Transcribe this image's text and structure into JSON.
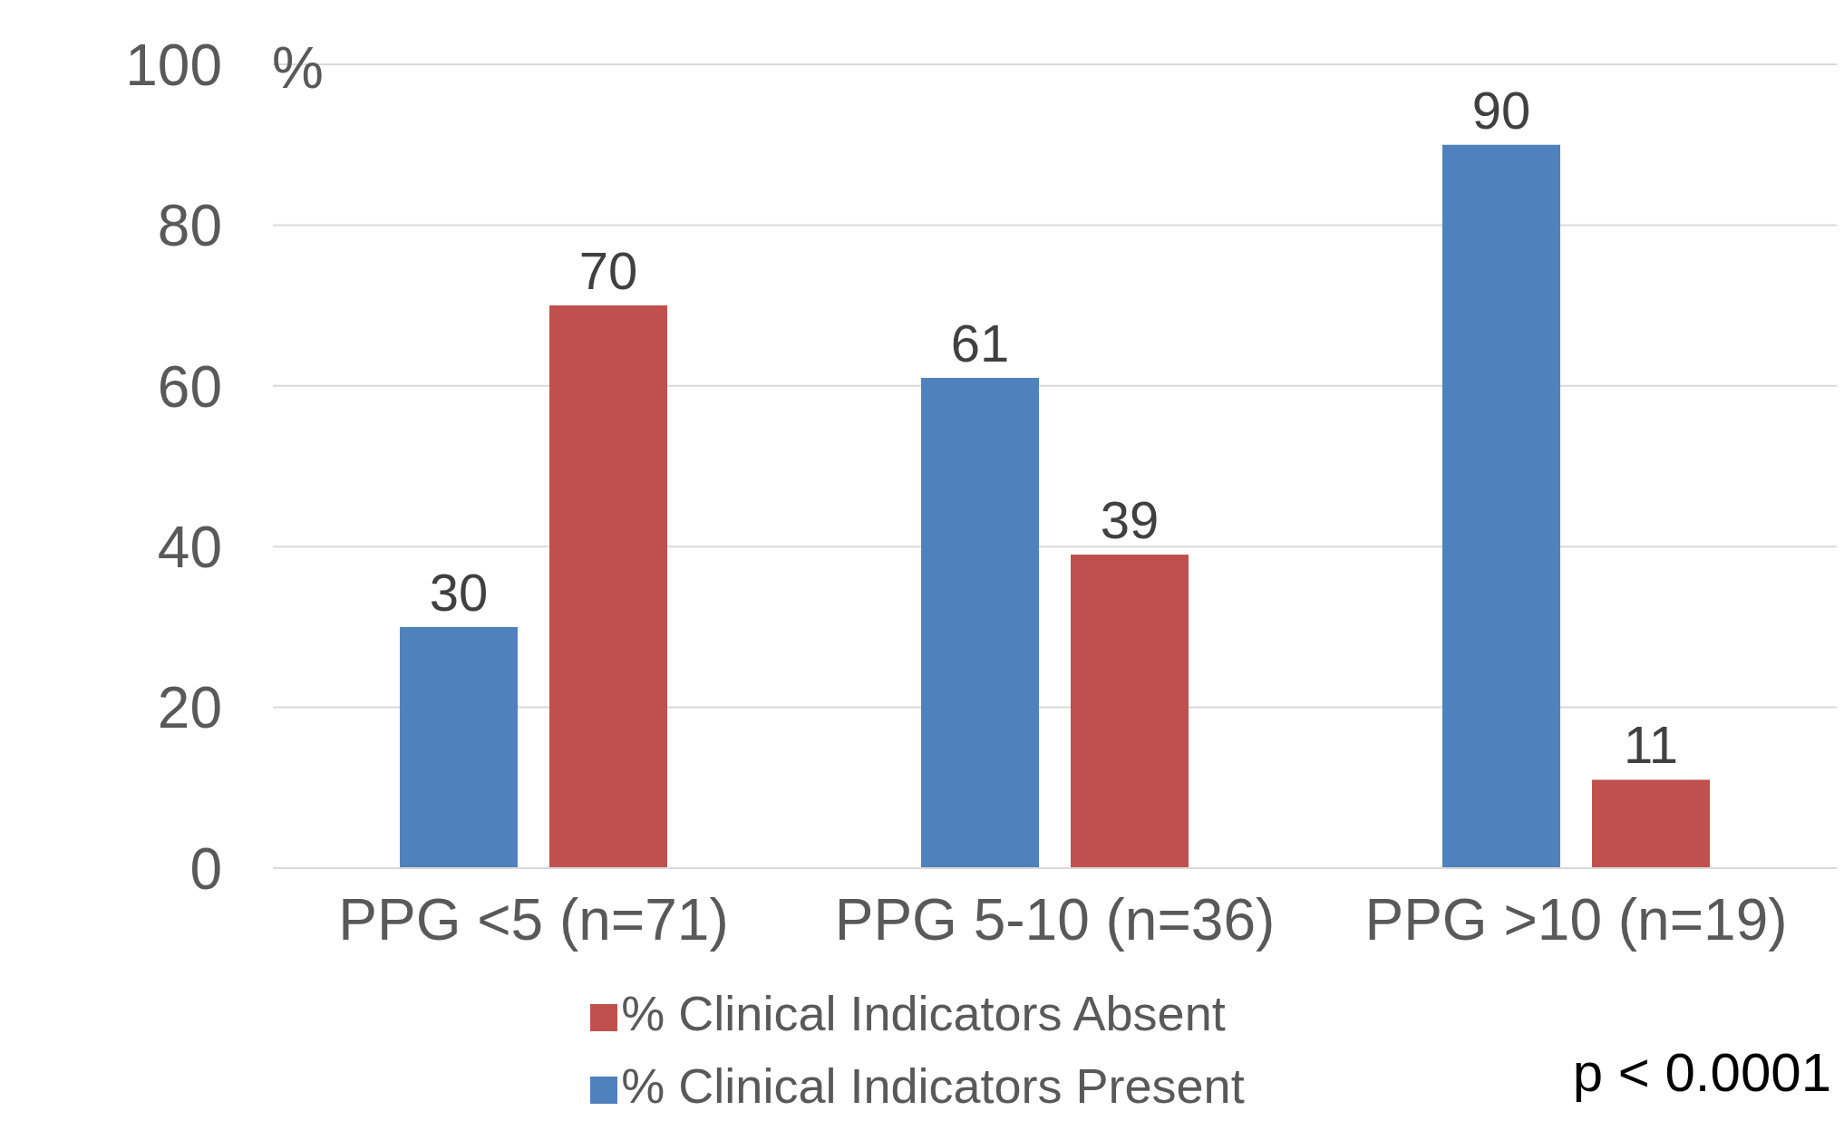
{
  "chart_data": {
    "type": "bar",
    "ylabel": "%",
    "categories": [
      "PPG <5 (n=71)",
      "PPG 5-10 (n=36)",
      "PPG >10 (n=19)"
    ],
    "series": [
      {
        "name": "% Clinical Indicators Present",
        "color": "#4f81bd",
        "values": [
          30,
          61,
          90
        ]
      },
      {
        "name": "% Clinical Indicators Absent",
        "color": "#c0504d",
        "values": [
          70,
          39,
          11
        ]
      }
    ],
    "ylim": [
      0,
      100
    ],
    "yticks": [
      0,
      20,
      40,
      60,
      80,
      100
    ],
    "grid": "y",
    "legend": "bottom",
    "data_labels": true,
    "annotations": [
      "p < 0.0001"
    ]
  }
}
